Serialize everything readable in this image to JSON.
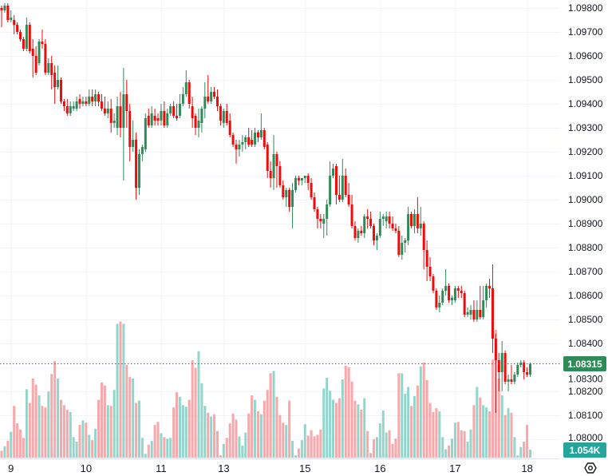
{
  "chart_data": {
    "type": "candlestick",
    "title": "",
    "xlabel": "",
    "ylabel": "",
    "ylim": [
      1.0794,
      1.09833
    ],
    "grid": true,
    "price_ticks": [
      "1.09800",
      "1.09700",
      "1.09600",
      "1.09500",
      "1.09400",
      "1.09300",
      "1.09200",
      "1.09100",
      "1.09000",
      "1.08900",
      "1.08800",
      "1.08700",
      "1.08600",
      "1.08500",
      "1.08400",
      "1.08300",
      "1.08200",
      "1.08100",
      "1.08000"
    ],
    "time_ticks": [
      {
        "label": "9",
        "index": 3
      },
      {
        "label": "10",
        "index": 27
      },
      {
        "label": "11",
        "index": 51
      },
      {
        "label": "13",
        "index": 71
      },
      {
        "label": "15",
        "index": 97
      },
      {
        "label": "16",
        "index": 121
      },
      {
        "label": "17",
        "index": 145
      },
      {
        "label": "18",
        "index": 168
      }
    ],
    "current_price": {
      "value": 1.08315,
      "label": "1.08315",
      "color": "#2e8b57"
    },
    "current_volume": {
      "value": 1.054,
      "label": "1.054K",
      "color": "#26a69a"
    },
    "colors": {
      "up": "#2e8b57",
      "down": "#f00a0a",
      "vol_up": "#92d6cb",
      "vol_down": "#f8a7aa",
      "grid": "#f0f3fa"
    },
    "volume_unit": "K",
    "ohlc": [
      [
        1.098,
        1.0981,
        1.0972,
        1.0979
      ],
      [
        1.0979,
        1.0982,
        1.0978,
        1.0981
      ],
      [
        1.0981,
        1.0982,
        1.0974,
        1.0975
      ],
      [
        1.0975,
        1.0979,
        1.0974,
        1.0976
      ],
      [
        1.0975,
        1.0977,
        1.0969,
        1.0973
      ],
      [
        1.0973,
        1.0974,
        1.0969,
        1.097
      ],
      [
        1.097,
        1.0971,
        1.0966,
        1.0967
      ],
      [
        1.0967,
        1.0968,
        1.0962,
        1.0963
      ],
      [
        1.0963,
        1.0976,
        1.0962,
        1.0973
      ],
      [
        1.0973,
        1.0974,
        1.0961,
        1.0962
      ],
      [
        1.0963,
        1.0967,
        1.0951,
        1.096
      ],
      [
        1.096,
        1.0964,
        1.0952,
        1.0953
      ],
      [
        1.0957,
        1.0967,
        1.0956,
        1.0966
      ],
      [
        1.0966,
        1.0971,
        1.0963,
        1.0965
      ],
      [
        1.0965,
        1.0967,
        1.0952,
        1.0953
      ],
      [
        1.0953,
        1.0959,
        1.0952,
        1.0957
      ],
      [
        1.0957,
        1.096,
        1.0946,
        1.0952
      ],
      [
        1.0953,
        1.0956,
        1.094,
        1.0947
      ],
      [
        1.0947,
        1.0956,
        1.0946,
        1.095
      ],
      [
        1.095,
        1.0951,
        1.094,
        1.0941
      ],
      [
        1.0941,
        1.0942,
        1.0937,
        1.0939
      ],
      [
        1.0939,
        1.0942,
        1.0935,
        1.0936
      ],
      [
        1.0936,
        1.0941,
        1.0935,
        1.0939
      ],
      [
        1.0938,
        1.0941,
        1.0937,
        1.0939
      ],
      [
        1.0938,
        1.0943,
        1.0937,
        1.0941
      ],
      [
        1.0942,
        1.0944,
        1.0938,
        1.094
      ],
      [
        1.094,
        1.0943,
        1.0939,
        1.0941
      ],
      [
        1.0941,
        1.0943,
        1.0939,
        1.094
      ],
      [
        1.094,
        1.0946,
        1.0939,
        1.0943
      ],
      [
        1.0943,
        1.0946,
        1.0939,
        1.0941
      ],
      [
        1.0941,
        1.0946,
        1.0939,
        1.0944
      ],
      [
        1.0944,
        1.0945,
        1.0939,
        1.0941
      ],
      [
        1.0941,
        1.0944,
        1.0937,
        1.0938
      ],
      [
        1.0938,
        1.0943,
        1.0935,
        1.0936
      ],
      [
        1.0936,
        1.0941,
        1.0934,
        1.0938
      ],
      [
        1.0938,
        1.0942,
        1.0928,
        1.0932
      ],
      [
        1.0932,
        1.0936,
        1.093,
        1.0933
      ],
      [
        1.093,
        1.0943,
        1.0927,
        1.0939
      ],
      [
        1.0939,
        1.0945,
        1.0926,
        1.093
      ],
      [
        1.093,
        1.0955,
        1.0908,
        1.0944
      ],
      [
        1.0944,
        1.095,
        1.093,
        1.0937
      ],
      [
        1.0937,
        1.094,
        1.0916,
        1.0922
      ],
      [
        1.0922,
        1.0933,
        1.092,
        1.0925
      ],
      [
        1.0925,
        1.0928,
        1.09,
        1.0905
      ],
      [
        1.0905,
        1.0921,
        1.0902,
        1.0919
      ],
      [
        1.0919,
        1.0923,
        1.0916,
        1.0922
      ],
      [
        1.0921,
        1.0936,
        1.092,
        1.0934
      ],
      [
        1.0935,
        1.0938,
        1.093,
        1.0931
      ],
      [
        1.0931,
        1.0939,
        1.093,
        1.0936
      ],
      [
        1.0935,
        1.0938,
        1.0931,
        1.0933
      ],
      [
        1.0934,
        1.0936,
        1.0931,
        1.0933
      ],
      [
        1.0933,
        1.094,
        1.0931,
        1.0937
      ],
      [
        1.0937,
        1.0941,
        1.093,
        1.0931
      ],
      [
        1.0931,
        1.0938,
        1.093,
        1.0936
      ],
      [
        1.0936,
        1.094,
        1.0935,
        1.0939
      ],
      [
        1.0939,
        1.0941,
        1.0934,
        1.0935
      ],
      [
        1.0935,
        1.094,
        1.0933,
        1.0934
      ],
      [
        1.0935,
        1.0944,
        1.0934,
        1.094
      ],
      [
        1.094,
        1.0947,
        1.0939,
        1.0944
      ],
      [
        1.0944,
        1.0954,
        1.0943,
        1.0949
      ],
      [
        1.0949,
        1.095,
        1.0938,
        1.094
      ],
      [
        1.0939,
        1.0943,
        1.093,
        1.0934
      ],
      [
        1.0935,
        1.0936,
        1.0927,
        1.093
      ],
      [
        1.093,
        1.0938,
        1.0926,
        1.0933
      ],
      [
        1.0932,
        1.0939,
        1.0928,
        1.0938
      ],
      [
        1.0938,
        1.0949,
        1.0934,
        1.0943
      ],
      [
        1.0943,
        1.0952,
        1.094,
        1.0941
      ],
      [
        1.0941,
        1.0947,
        1.094,
        1.0945
      ],
      [
        1.0945,
        1.0947,
        1.0942,
        1.0943
      ],
      [
        1.0943,
        1.0946,
        1.0937,
        1.0939
      ],
      [
        1.0939,
        1.094,
        1.0931,
        1.0933
      ],
      [
        1.0932,
        1.0938,
        1.093,
        1.0937
      ],
      [
        1.0937,
        1.094,
        1.0931,
        1.0932
      ],
      [
        1.0933,
        1.0936,
        1.0926,
        1.0927
      ],
      [
        1.0927,
        1.0928,
        1.0922,
        1.0923
      ],
      [
        1.0923,
        1.0925,
        1.0915,
        1.0921
      ],
      [
        1.0921,
        1.0925,
        1.0918,
        1.0923
      ],
      [
        1.0923,
        1.0927,
        1.092,
        1.0924
      ],
      [
        1.0924,
        1.0927,
        1.0921,
        1.0926
      ],
      [
        1.0926,
        1.093,
        1.0922,
        1.0923
      ],
      [
        1.0925,
        1.0929,
        1.0922,
        1.0923
      ],
      [
        1.0923,
        1.093,
        1.0922,
        1.0928
      ],
      [
        1.0928,
        1.0929,
        1.0924,
        1.0926
      ],
      [
        1.0926,
        1.0936,
        1.0925,
        1.0929
      ],
      [
        1.0929,
        1.093,
        1.0921,
        1.0922
      ],
      [
        1.0923,
        1.0924,
        1.0909,
        1.0912
      ],
      [
        1.0912,
        1.0916,
        1.0905,
        1.0909
      ],
      [
        1.0909,
        1.0927,
        1.0904,
        1.0919
      ],
      [
        1.0919,
        1.092,
        1.0905,
        1.0914
      ],
      [
        1.0914,
        1.0916,
        1.0905,
        1.0906
      ],
      [
        1.0906,
        1.0908,
        1.09,
        1.0901
      ],
      [
        1.0901,
        1.0905,
        1.0897,
        1.0904
      ],
      [
        1.0904,
        1.0905,
        1.0895,
        1.0897
      ],
      [
        1.0897,
        1.0907,
        1.0888,
        1.0904
      ],
      [
        1.0904,
        1.091,
        1.0903,
        1.0909
      ],
      [
        1.0909,
        1.091,
        1.0906,
        1.0908
      ],
      [
        1.0908,
        1.0909,
        1.0906,
        1.0909
      ],
      [
        1.0909,
        1.091,
        1.0907,
        1.091
      ],
      [
        1.091,
        1.0911,
        1.0904,
        1.0907
      ],
      [
        1.0907,
        1.0909,
        1.09,
        1.0901
      ],
      [
        1.0901,
        1.0903,
        1.0895,
        1.0896
      ],
      [
        1.0896,
        1.0897,
        1.0888,
        1.0892
      ],
      [
        1.0892,
        1.0894,
        1.0888,
        1.0891
      ],
      [
        1.089,
        1.0894,
        1.0884,
        1.0892
      ],
      [
        1.0892,
        1.09,
        1.0885,
        1.0898
      ],
      [
        1.0898,
        1.0916,
        1.0897,
        1.091
      ],
      [
        1.091,
        1.0915,
        1.0909,
        1.0913
      ],
      [
        1.0914,
        1.0915,
        1.0898,
        1.0902
      ],
      [
        1.0902,
        1.091,
        1.0899,
        1.09
      ],
      [
        1.09,
        1.0917,
        1.0899,
        1.091
      ],
      [
        1.091,
        1.0913,
        1.0901,
        1.0902
      ],
      [
        1.0902,
        1.0907,
        1.0897,
        1.0898
      ],
      [
        1.0898,
        1.0902,
        1.0888,
        1.0889
      ],
      [
        1.0889,
        1.0891,
        1.0883,
        1.0884
      ],
      [
        1.0884,
        1.0888,
        1.0882,
        1.0887
      ],
      [
        1.0887,
        1.0889,
        1.0885,
        1.0886
      ],
      [
        1.0886,
        1.0894,
        1.0884,
        1.0893
      ],
      [
        1.0893,
        1.0896,
        1.0888,
        1.0892
      ],
      [
        1.0892,
        1.0895,
        1.0888,
        1.0889
      ],
      [
        1.0889,
        1.089,
        1.0881,
        1.0883
      ],
      [
        1.0883,
        1.0886,
        1.0879,
        1.0885
      ],
      [
        1.0885,
        1.0895,
        1.0884,
        1.0892
      ],
      [
        1.0892,
        1.0894,
        1.0889,
        1.0893
      ],
      [
        1.0891,
        1.0895,
        1.0888,
        1.0893
      ],
      [
        1.0893,
        1.0895,
        1.0888,
        1.089
      ],
      [
        1.089,
        1.0893,
        1.0887,
        1.0888
      ],
      [
        1.0888,
        1.089,
        1.0886,
        1.0887
      ],
      [
        1.0887,
        1.0889,
        1.0876,
        1.0877
      ],
      [
        1.0877,
        1.0885,
        1.0875,
        1.0882
      ],
      [
        1.0882,
        1.0884,
        1.0878,
        1.0883
      ],
      [
        1.0883,
        1.0897,
        1.0881,
        1.0894
      ],
      [
        1.0894,
        1.0895,
        1.0888,
        1.0889
      ],
      [
        1.0889,
        1.0896,
        1.0886,
        1.0894
      ],
      [
        1.0894,
        1.0901,
        1.0886,
        1.0888
      ],
      [
        1.0888,
        1.0897,
        1.0885,
        1.089
      ],
      [
        1.089,
        1.0891,
        1.0871,
        1.0879
      ],
      [
        1.0879,
        1.0883,
        1.0866,
        1.0872
      ],
      [
        1.0872,
        1.0876,
        1.0866,
        1.0868
      ],
      [
        1.0868,
        1.0869,
        1.0861,
        1.0862
      ],
      [
        1.0862,
        1.0863,
        1.0854,
        1.0855
      ],
      [
        1.0855,
        1.086,
        1.0853,
        1.0857
      ],
      [
        1.0857,
        1.0863,
        1.0856,
        1.0862
      ],
      [
        1.0862,
        1.0871,
        1.086,
        1.0864
      ],
      [
        1.0864,
        1.0865,
        1.0857,
        1.0858
      ],
      [
        1.0858,
        1.086,
        1.0856,
        1.0859
      ],
      [
        1.0858,
        1.0864,
        1.0857,
        1.0863
      ],
      [
        1.0863,
        1.0864,
        1.0859,
        1.0862
      ],
      [
        1.0862,
        1.0864,
        1.0859,
        1.0861
      ],
      [
        1.0861,
        1.0862,
        1.0851,
        1.0852
      ],
      [
        1.0852,
        1.0855,
        1.0851,
        1.0853
      ],
      [
        1.0852,
        1.0856,
        1.085,
        1.0854
      ],
      [
        1.0854,
        1.0858,
        1.0849,
        1.085
      ],
      [
        1.085,
        1.0858,
        1.0849,
        1.0854
      ],
      [
        1.0854,
        1.0864,
        1.085,
        1.0851
      ],
      [
        1.0851,
        1.0864,
        1.085,
        1.0858
      ],
      [
        1.0858,
        1.0865,
        1.0855,
        1.0864
      ],
      [
        1.0864,
        1.0867,
        1.0859,
        1.0863
      ],
      [
        1.0863,
        1.0873,
        1.0836,
        1.0842
      ],
      [
        1.0842,
        1.0844,
        1.0811,
        1.0833
      ],
      [
        1.0833,
        1.0836,
        1.082,
        1.0828
      ],
      [
        1.0828,
        1.0841,
        1.082,
        1.0836
      ],
      [
        1.0836,
        1.0837,
        1.0823,
        1.0824
      ],
      [
        1.0824,
        1.0827,
        1.082,
        1.0825
      ],
      [
        1.0825,
        1.0831,
        1.0823,
        1.0824
      ],
      [
        1.0824,
        1.0828,
        1.0823,
        1.0827
      ],
      [
        1.0827,
        1.0832,
        1.0826,
        1.0831
      ],
      [
        1.0831,
        1.0833,
        1.083,
        1.0832
      ],
      [
        1.0832,
        1.0833,
        1.0825,
        1.0828
      ],
      [
        1.0828,
        1.083,
        1.0826,
        1.0827
      ],
      [
        1.0827,
        1.0832,
        1.0826,
        1.08315
      ]
    ],
    "volume": [
      0.9,
      1.5,
      2.2,
      3.4,
      6.8,
      4.5,
      3.7,
      2.6,
      9.0,
      7.2,
      10.4,
      9.6,
      8.2,
      6.8,
      6.6,
      8.7,
      11.0,
      12.7,
      10.4,
      7.6,
      6.9,
      6.3,
      6.0,
      2.7,
      2.1,
      4.3,
      4.9,
      4.6,
      3.0,
      2.3,
      3.8,
      7.6,
      9.9,
      9.5,
      6.9,
      6.8,
      8.9,
      17.6,
      17.9,
      17.6,
      12.2,
      10.6,
      10.4,
      7.2,
      7.5,
      2.6,
      0.5,
      1.7,
      2.2,
      4.3,
      4.7,
      3.2,
      2.7,
      2.5,
      2.6,
      6.6,
      8.6,
      8.0,
      6.9,
      6.7,
      7.6,
      12.8,
      11.8,
      14.0,
      9.8,
      6.8,
      5.9,
      5.4,
      5.7,
      3.5,
      0.3,
      1.8,
      2.6,
      4.5,
      5.8,
      5.0,
      2.8,
      1.6,
      3.3,
      5.8,
      8.2,
      7.6,
      6.1,
      5.7,
      7.5,
      8.9,
      11.1,
      11.4,
      8.0,
      5.6,
      4.6,
      4.3,
      7.5,
      2.2,
      0.3,
      1.2,
      2.3,
      4.4,
      2.9,
      3.6,
      2.8,
      3.0,
      3.7,
      9.1,
      10.5,
      8.8,
      7.6,
      7.2,
      7.8,
      10.3,
      12.1,
      11.9,
      10.0,
      7.5,
      7.0,
      6.3,
      7.8,
      3.5,
      0.6,
      2.4,
      2.7,
      4.5,
      6.2,
      3.3,
      3.6,
      1.8,
      2.5,
      11.1,
      11.1,
      8.4,
      9.3,
      6.8,
      8.1,
      9.5,
      12.0,
      12.5,
      10.2,
      7.2,
      6.0,
      6.5,
      6.1,
      2.7,
      1.1,
      1.6,
      2.5,
      4.6,
      4.7,
      3.6,
      3.5,
      2.1,
      3.7,
      6.9,
      9.3,
      7.9,
      6.9,
      6.6,
      6.1,
      12.9,
      16.8,
      10.4,
      8.2,
      5.6,
      6.5,
      5.9,
      2.7,
      0.3,
      1.4,
      2.1,
      4.3,
      1.054
    ]
  },
  "settings_icon": "hexagon-gear-icon"
}
